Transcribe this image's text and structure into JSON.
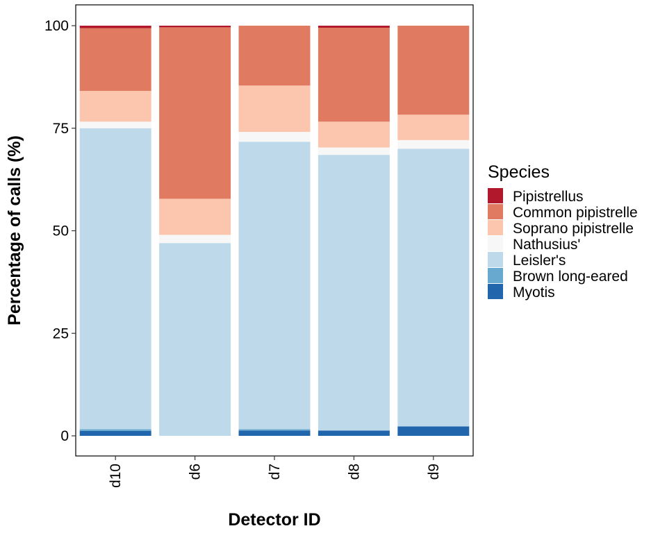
{
  "chart_data": {
    "type": "bar",
    "stacked": true,
    "categories": [
      "d10",
      "d6",
      "d7",
      "d8",
      "d9"
    ],
    "xlabel": "Detector ID",
    "ylabel": "Percentage of calls (%)",
    "ylim": [
      0,
      100
    ],
    "yticks": [
      0,
      25,
      50,
      75,
      100
    ],
    "grid": false,
    "legend_title": "Species",
    "legend_position": "right",
    "series": [
      {
        "name": "Myotis",
        "color": "#2166ac",
        "values": [
          1.2,
          0,
          1.3,
          1.3,
          2.3
        ]
      },
      {
        "name": "Brown long-eared",
        "color": "#67a9cf",
        "values": [
          0.4,
          0,
          0.3,
          0,
          0
        ]
      },
      {
        "name": "Leisler's",
        "color": "#bdd9ea",
        "values": [
          73.4,
          47,
          70.1,
          67.2,
          67.7
        ]
      },
      {
        "name": "Nathusius'",
        "color": "#f7f7f7",
        "values": [
          1.6,
          2,
          2.4,
          1.8,
          2.1
        ]
      },
      {
        "name": "Soprano pipistrelle",
        "color": "#fbc6ad",
        "values": [
          7.5,
          8.8,
          11.3,
          6.3,
          6.2
        ]
      },
      {
        "name": "Common pipistrelle",
        "color": "#e07a61",
        "values": [
          15.3,
          41.8,
          14.6,
          22.9,
          21.7
        ]
      },
      {
        "name": "Pipistrellus",
        "color": "#b2182b",
        "values": [
          0.6,
          0.4,
          0,
          0.5,
          0
        ]
      }
    ]
  }
}
